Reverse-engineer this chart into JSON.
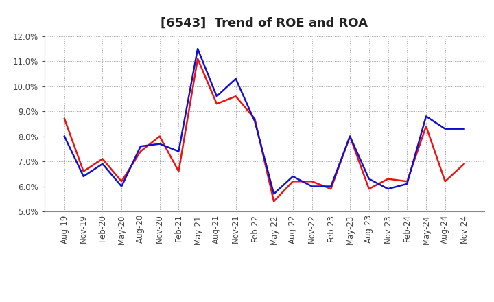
{
  "title": "[6543]  Trend of ROE and ROA",
  "x_labels": [
    "Aug-19",
    "Nov-19",
    "Feb-20",
    "May-20",
    "Aug-20",
    "Nov-20",
    "Feb-21",
    "May-21",
    "Aug-21",
    "Nov-21",
    "Feb-22",
    "May-22",
    "Aug-22",
    "Nov-22",
    "Feb-23",
    "May-23",
    "Aug-23",
    "Nov-23",
    "Feb-24",
    "May-24",
    "Aug-24",
    "Nov-24"
  ],
  "ROE": [
    8.7,
    6.6,
    7.1,
    6.2,
    7.4,
    8.0,
    6.6,
    11.1,
    9.3,
    9.6,
    8.7,
    5.4,
    6.2,
    6.2,
    5.9,
    8.0,
    5.9,
    6.3,
    6.2,
    8.4,
    6.2,
    6.9
  ],
  "ROA": [
    8.0,
    6.4,
    6.9,
    6.0,
    7.6,
    7.7,
    7.4,
    11.5,
    9.6,
    10.3,
    8.6,
    5.7,
    6.4,
    6.0,
    6.0,
    8.0,
    6.3,
    5.9,
    6.1,
    8.8,
    8.3,
    8.3
  ],
  "ROE_color": "#ee1111",
  "ROA_color": "#1111cc",
  "ylim": [
    5.0,
    12.0
  ],
  "yticks": [
    5.0,
    6.0,
    7.0,
    8.0,
    9.0,
    10.0,
    11.0,
    12.0
  ],
  "background_color": "#ffffff",
  "grid_color": "#999999",
  "title_fontsize": 13,
  "axis_fontsize": 8.5,
  "legend_fontsize": 10,
  "line_width": 1.8
}
